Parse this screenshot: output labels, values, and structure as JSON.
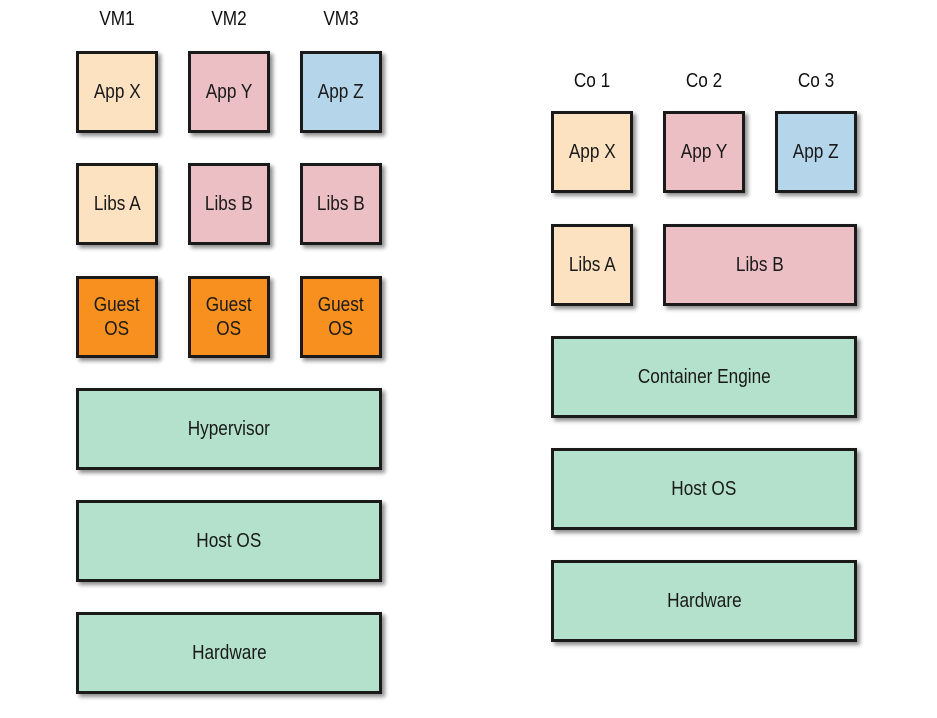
{
  "colors": {
    "peach": "#fde2c1",
    "pink": "#ebbfc3",
    "blue": "#b5d5ea",
    "orange": "#f7901e",
    "green": "#b3e1cb"
  },
  "vm_side": {
    "labels": [
      "VM1",
      "VM2",
      "VM3"
    ],
    "apps": [
      "App X",
      "App Y",
      "App Z"
    ],
    "libs": [
      "Libs A",
      "Libs B",
      "Libs B"
    ],
    "guest_os": [
      "Guest\nOS",
      "Guest\nOS",
      "Guest\nOS"
    ],
    "hypervisor": "Hypervisor",
    "host_os": "Host OS",
    "hardware": "Hardware"
  },
  "container_side": {
    "labels": [
      "Co 1",
      "Co 2",
      "Co 3"
    ],
    "apps": [
      "App X",
      "App Y",
      "App Z"
    ],
    "libs_a": "Libs A",
    "libs_b": "Libs B",
    "container_engine": "Container Engine",
    "host_os": "Host OS",
    "hardware": "Hardware"
  }
}
